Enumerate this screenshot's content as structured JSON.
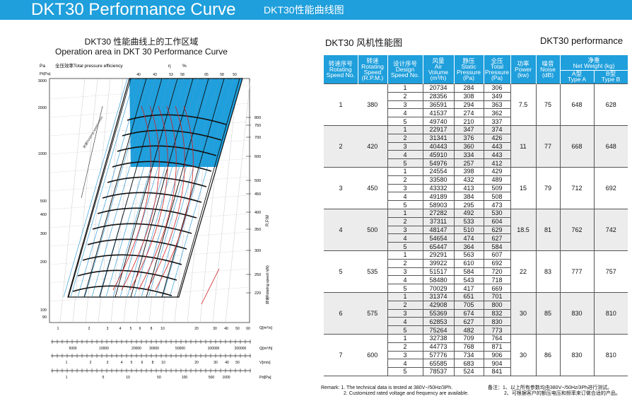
{
  "header": {
    "title": "DKT30 Performance Curve",
    "subtitle": "DKT30性能曲线图"
  },
  "chart": {
    "title_cn": "DKT30 性能曲线上的工作区域",
    "title_en": "Operation area in DKT 30 Performance Curve",
    "pa_label": "Pa",
    "efficiency_label": "全压效率Total pressure efficiency",
    "eta": "η",
    "percent": "%",
    "pt_label": "Pt(Pa)",
    "efficiency_ticks": [
      "40",
      "43",
      "53",
      "58",
      "65",
      "58",
      "50"
    ],
    "y_ticks": [
      "3000",
      "2000",
      "1000",
      "500",
      "400",
      "300",
      "200",
      "100",
      "90"
    ],
    "rpm_ticks": [
      "800",
      "750",
      "700",
      "600",
      "500",
      "450",
      "400",
      "350",
      "300",
      "250",
      "220"
    ],
    "rpm_axis_label": "R.P.M",
    "rotating_speed_label": "转速Rotating speed n(N)",
    "q_ticks": [
      "1",
      "2",
      "3",
      "4",
      "5",
      "6",
      "8",
      "10",
      "20",
      "30",
      "40",
      "50",
      "60"
    ],
    "q_label": "Q[m³/s]",
    "qh_ticks": [
      "5000",
      "10000",
      "20000",
      "30000",
      "50000",
      "100000",
      "200000"
    ],
    "qh_label": "Q[m³/h]",
    "v_ticks": [
      "1",
      "2",
      "3",
      "4",
      "5",
      "6",
      "8",
      "10",
      "20",
      "30",
      "40",
      "50"
    ],
    "v_label": "V[m/s]",
    "pd_ticks": [
      "1",
      "5",
      "10",
      "50",
      "100",
      "500",
      "1000"
    ],
    "pd_label": "Pd[Pa]",
    "diag_label": "转速Rotating speed n/min",
    "colors": {
      "fill": "#1f9fdc",
      "red": "#d02020",
      "blue": "#3aa0d8",
      "black": "#111111"
    }
  },
  "table": {
    "title_cn": "DKT30 风机性能图",
    "title_en": "DKT30 performance",
    "headers": {
      "speed_no": [
        "转速序号",
        "Rotating",
        "Speed No."
      ],
      "rpm": [
        "转速",
        "Rotating",
        "Speed",
        "(R.P.M.)"
      ],
      "design_no": [
        "设计序号",
        "Design",
        "Speed No."
      ],
      "air_volume": [
        "风量",
        "Air",
        "Volume",
        "(m³/h)"
      ],
      "static_pressure": [
        "静压",
        "Static",
        "Pressure",
        "(Pa)"
      ],
      "total_pressure": [
        "全压",
        "Total",
        "Pressure",
        "(Pa)"
      ],
      "power": [
        "功率",
        "Power",
        "(kw)"
      ],
      "noise": [
        "噪音",
        "Noise",
        "(dB)"
      ],
      "net_weight": [
        "净重",
        "Net Weight (kg)"
      ],
      "type_a": [
        "A型",
        "Type A"
      ],
      "type_b": [
        "B型",
        "Type B"
      ]
    },
    "groups": [
      {
        "no": "1",
        "rpm": "380",
        "power": "7.5",
        "noise": "75",
        "a": "648",
        "b": "628",
        "rows": [
          [
            "1",
            "20734",
            "284",
            "306"
          ],
          [
            "2",
            "28356",
            "308",
            "349"
          ],
          [
            "3",
            "36591",
            "294",
            "363"
          ],
          [
            "4",
            "41537",
            "274",
            "362"
          ],
          [
            "5",
            "49740",
            "210",
            "337"
          ]
        ]
      },
      {
        "no": "2",
        "rpm": "420",
        "power": "11",
        "noise": "77",
        "a": "668",
        "b": "648",
        "rows": [
          [
            "1",
            "22917",
            "347",
            "374"
          ],
          [
            "2",
            "31341",
            "376",
            "426"
          ],
          [
            "3",
            "40443",
            "360",
            "443"
          ],
          [
            "4",
            "45910",
            "334",
            "443"
          ],
          [
            "5",
            "54976",
            "257",
            "412"
          ]
        ]
      },
      {
        "no": "3",
        "rpm": "450",
        "power": "15",
        "noise": "79",
        "a": "712",
        "b": "692",
        "rows": [
          [
            "1",
            "24554",
            "398",
            "429"
          ],
          [
            "2",
            "33580",
            "432",
            "489"
          ],
          [
            "3",
            "43332",
            "413",
            "509"
          ],
          [
            "4",
            "49189",
            "384",
            "508"
          ],
          [
            "5",
            "58903",
            "295",
            "473"
          ]
        ]
      },
      {
        "no": "4",
        "rpm": "500",
        "power": "18.5",
        "noise": "81",
        "a": "762",
        "b": "742",
        "rows": [
          [
            "1",
            "27282",
            "492",
            "530"
          ],
          [
            "2",
            "37311",
            "533",
            "604"
          ],
          [
            "3",
            "48147",
            "510",
            "629"
          ],
          [
            "4",
            "54654",
            "474",
            "627"
          ],
          [
            "5",
            "65447",
            "364",
            "584"
          ]
        ]
      },
      {
        "no": "5",
        "rpm": "535",
        "power": "22",
        "noise": "83",
        "a": "777",
        "b": "757",
        "rows": [
          [
            "1",
            "29291",
            "563",
            "607"
          ],
          [
            "2",
            "39922",
            "610",
            "692"
          ],
          [
            "3",
            "51517",
            "584",
            "720"
          ],
          [
            "4",
            "58480",
            "543",
            "718"
          ],
          [
            "5",
            "70029",
            "417",
            "669"
          ]
        ]
      },
      {
        "no": "6",
        "rpm": "575",
        "power": "30",
        "noise": "85",
        "a": "830",
        "b": "810",
        "rows": [
          [
            "1",
            "31374",
            "651",
            "701"
          ],
          [
            "2",
            "42908",
            "705",
            "800"
          ],
          [
            "3",
            "55369",
            "674",
            "832"
          ],
          [
            "4",
            "62853",
            "627",
            "830"
          ],
          [
            "5",
            "75264",
            "482",
            "773"
          ]
        ]
      },
      {
        "no": "7",
        "rpm": "600",
        "power": "30",
        "noise": "86",
        "a": "830",
        "b": "810",
        "rows": [
          [
            "1",
            "32738",
            "709",
            "764"
          ],
          [
            "2",
            "44773",
            "768",
            "871"
          ],
          [
            "3",
            "57776",
            "734",
            "906"
          ],
          [
            "4",
            "65585",
            "683",
            "904"
          ],
          [
            "5",
            "78537",
            "524",
            "841"
          ]
        ]
      }
    ]
  },
  "remarks": {
    "left_1": "Remark: 1. The technical data is tested at 380V~/50Hz/3Ph.",
    "left_2": "2. Customized rated voltage and frequency are available.",
    "right_1": "备注：1、以上所有参数均由380V~/50Hz/3Ph进行测试。",
    "right_2": "2、可根据客户的额压电压和频率来订做合适的产品。"
  }
}
